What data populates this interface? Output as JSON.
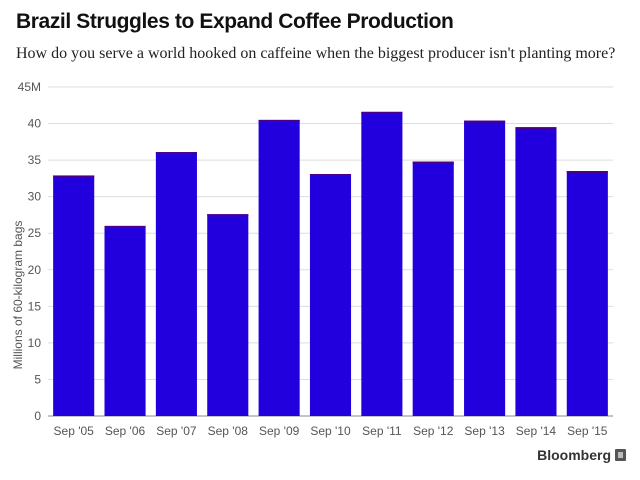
{
  "title": "Brazil Struggles to Expand Coffee Production",
  "subtitle": "How do you serve a world hooked on caffeine when the biggest producer isn't planting more?",
  "brand": "Bloomberg",
  "colors": {
    "bar": "#2200dd",
    "axis_text": "#555555",
    "grid": "#dddddd"
  },
  "chart_data": {
    "type": "bar",
    "title": "Brazil Struggles to Expand Coffee Production",
    "subtitle": "How do you serve a world hooked on caffeine when the biggest producer isn't planting more?",
    "xlabel": "",
    "ylabel": "Millions of 60-kilogram bags",
    "ylim": [
      0,
      45
    ],
    "yticks": [
      0,
      5,
      10,
      15,
      20,
      25,
      30,
      35,
      40,
      45
    ],
    "ytick_labels": [
      "0",
      "5",
      "10",
      "15",
      "20",
      "25",
      "30",
      "35",
      "40",
      "45M"
    ],
    "categories": [
      "Sep '05",
      "Sep '06",
      "Sep '07",
      "Sep '08",
      "Sep '09",
      "Sep '10",
      "Sep '11",
      "Sep '12",
      "Sep '13",
      "Sep '14",
      "Sep '15"
    ],
    "values": [
      32.9,
      26.0,
      36.1,
      27.6,
      40.5,
      33.1,
      41.6,
      34.8,
      40.4,
      39.5,
      33.5
    ],
    "grid": true,
    "legend": "none"
  }
}
